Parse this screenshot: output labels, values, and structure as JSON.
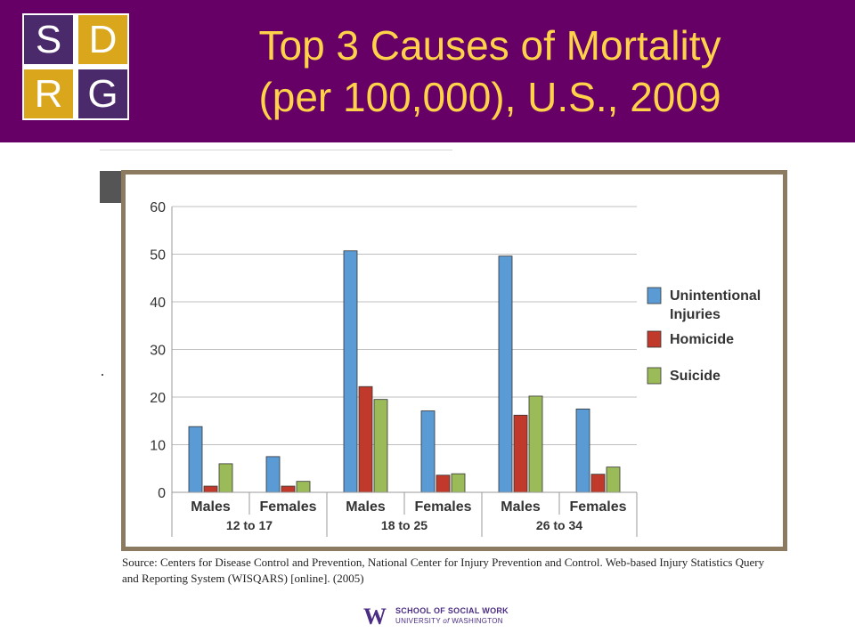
{
  "logo": {
    "letters": [
      "S",
      "D",
      "R",
      "G"
    ],
    "colors": [
      "#4b2a6b",
      "#d9a61c",
      "#d9a61c",
      "#4b2a6b"
    ]
  },
  "header": {
    "title_line1": "Top 3 Causes of Mortality",
    "title_line2": "(per 100,000), U.S., 2009",
    "background": "#660066",
    "title_color": "#ffd24a"
  },
  "chart_data": {
    "type": "bar",
    "categories": [
      "Males",
      "Females",
      "Males",
      "Females",
      "Males",
      "Females"
    ],
    "groups": [
      {
        "label": "12 to 17",
        "span": 2
      },
      {
        "label": "18 to 25",
        "span": 2
      },
      {
        "label": "26 to 34",
        "span": 2
      }
    ],
    "series": [
      {
        "name": "Unintentional Injuries",
        "label_lines": [
          "Unintentional",
          "Injuries"
        ],
        "color": "#5b9bd5",
        "values": [
          13.8,
          7.5,
          50.7,
          17.1,
          49.6,
          17.5
        ]
      },
      {
        "name": "Homicide",
        "label_lines": [
          "Homicide"
        ],
        "color": "#c0392b",
        "values": [
          1.3,
          1.3,
          22.2,
          3.6,
          16.2,
          3.8
        ]
      },
      {
        "name": "Suicide",
        "label_lines": [
          "Suicide"
        ],
        "color": "#9bbb59",
        "values": [
          6.0,
          2.3,
          19.5,
          3.9,
          20.2,
          5.3
        ]
      }
    ],
    "yticks": [
      0,
      10,
      20,
      30,
      40,
      50,
      60
    ],
    "ylim": [
      0,
      60
    ],
    "grid": true,
    "legend": "right"
  },
  "source": {
    "text": "Source: Centers for Disease Control and Prevention, National Center for Injury Prevention and Control. Web-based Injury Statistics Query and Reporting System (WISQARS) [online]. (2005)"
  },
  "footer": {
    "logo_letter": "W",
    "line1": "SCHOOL OF SOCIAL WORK",
    "line2_a": "UNIVERSITY ",
    "line2_b": "of",
    "line2_c": " WASHINGTON"
  }
}
